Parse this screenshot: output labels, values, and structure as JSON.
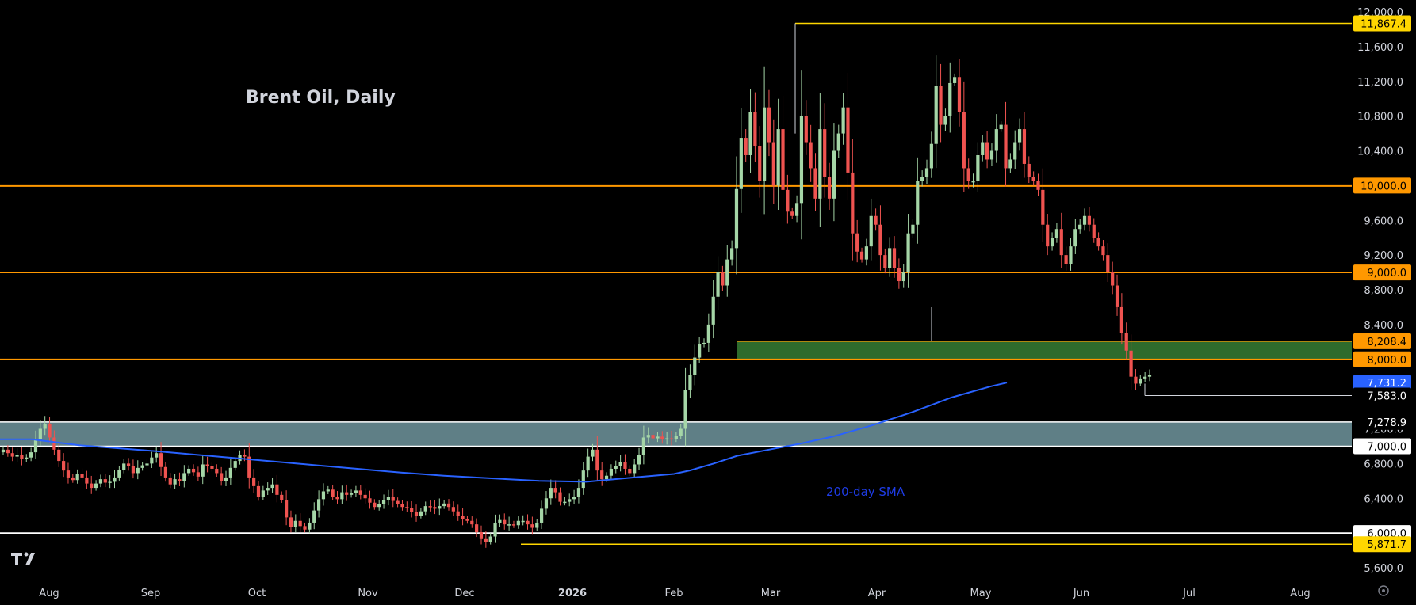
{
  "chart_data": {
    "type": "candlestick",
    "title": "Brent Oil, Daily",
    "ylim": [
      5600,
      12000
    ],
    "y_ticks": [
      5600,
      6000,
      6400,
      6800,
      7200,
      7600,
      8000,
      8400,
      8800,
      9200,
      9600,
      10000,
      10400,
      10800,
      11200,
      11600,
      12000
    ],
    "y_tick_labels": [
      "5,600.0",
      "6,000.0",
      "6,400.0",
      "6,800.0",
      "7,200.0",
      "7,600.0",
      "8,000.0",
      "8,400.0",
      "8,800.0",
      "9,200.0",
      "9,600.0",
      "10,000.0",
      "10,400.0",
      "10,800.0",
      "11,200.0",
      "11,600.0",
      "12,000.0"
    ],
    "x_labels": [
      "Aug",
      "Sep",
      "Oct",
      "Nov",
      "Dec",
      "2026",
      "Feb",
      "Mar",
      "Apr",
      "May",
      "Jun",
      "Jul",
      "Aug"
    ],
    "sma_label": "200-day SMA",
    "price_tags": [
      {
        "value": 11867.4,
        "label": "11,867.4",
        "bg": "#ffd600",
        "fg": "#000000"
      },
      {
        "value": 10000.0,
        "label": "10,000.0",
        "bg": "#ff9800",
        "fg": "#000000"
      },
      {
        "value": 9000.0,
        "label": "9,000.0",
        "bg": "#ff9800",
        "fg": "#000000"
      },
      {
        "value": 8208.4,
        "label": "8,208.4",
        "bg": "#ff9800",
        "fg": "#000000"
      },
      {
        "value": 8000.0,
        "label": "8,000.0",
        "bg": "#ff9800",
        "fg": "#000000"
      },
      {
        "value": 7731.2,
        "label": "7,731.2",
        "bg": "#2962ff",
        "fg": "#ffffff"
      },
      {
        "value": 7583.0,
        "label": "7,583.0",
        "bg": "#000000",
        "fg": "#ffffff"
      },
      {
        "value": 7278.9,
        "label": "7,278.9",
        "bg": "#000000",
        "fg": "#ffffff"
      },
      {
        "value": 7000.0,
        "label": "7,000.0",
        "bg": "#ffffff",
        "fg": "#000000"
      },
      {
        "value": 6000.0,
        "label": "6,000.0",
        "bg": "#ffffff",
        "fg": "#000000"
      },
      {
        "value": 5871.7,
        "label": "5,871.7",
        "bg": "#ffd600",
        "fg": "#000000"
      }
    ],
    "levels": [
      {
        "value": 10000,
        "color": "#ff9800"
      },
      {
        "value": 9000,
        "color": "#ff9800"
      },
      {
        "value": 8000,
        "color": "#ff9800"
      },
      {
        "value": 6000,
        "color": "#ffffff"
      }
    ],
    "zones": [
      {
        "from": 8000,
        "to": 8208.4,
        "fill": "#2e6b2c",
        "border": "#ff9800"
      },
      {
        "from": 7000,
        "to": 7278.9,
        "fill": "#5f7f86",
        "border": "#ffffff"
      }
    ],
    "colors": {
      "up": "#a5d6a7",
      "down": "#ef5350",
      "sma": "#2962ff",
      "background": "#000000"
    },
    "closes": [
      6960,
      6920,
      6880,
      6900,
      6850,
      6870,
      6930,
      7080,
      7200,
      7260,
      7100,
      6960,
      6830,
      6720,
      6640,
      6610,
      6680,
      6640,
      6570,
      6520,
      6570,
      6620,
      6580,
      6590,
      6640,
      6730,
      6800,
      6770,
      6690,
      6750,
      6780,
      6800,
      6870,
      6920,
      6760,
      6640,
      6560,
      6620,
      6600,
      6690,
      6740,
      6700,
      6650,
      6790,
      6770,
      6740,
      6690,
      6600,
      6640,
      6750,
      6830,
      6900,
      6880,
      6640,
      6540,
      6420,
      6490,
      6520,
      6560,
      6440,
      6380,
      6180,
      6070,
      6140,
      6080,
      6040,
      6120,
      6260,
      6390,
      6480,
      6500,
      6420,
      6390,
      6470,
      6440,
      6460,
      6490,
      6440,
      6400,
      6350,
      6300,
      6330,
      6380,
      6420,
      6370,
      6330,
      6300,
      6290,
      6240,
      6200,
      6250,
      6310,
      6300,
      6280,
      6310,
      6340,
      6300,
      6250,
      6200,
      6160,
      6140,
      6100,
      6010,
      5930,
      5900,
      5960,
      6120,
      6150,
      6100,
      6100,
      6090,
      6140,
      6140,
      6100,
      6060,
      6120,
      6280,
      6400,
      6520,
      6470,
      6360,
      6360,
      6390,
      6420,
      6520,
      6720,
      6880,
      6960,
      6720,
      6620,
      6660,
      6740,
      6770,
      6820,
      6740,
      6690,
      6790,
      6900,
      7100,
      7130,
      7090,
      7110,
      7080,
      7090,
      7080,
      7120,
      7200,
      7650,
      7820,
      8020,
      8180,
      8190,
      8400,
      8720,
      9000,
      8850,
      9150,
      9280,
      9960,
      10550,
      10350,
      10850,
      10450,
      10050,
      10900,
      10500,
      10000,
      10650,
      9950,
      9700,
      9650,
      9800,
      10800,
      10500,
      10200,
      9850,
      10650,
      10100,
      9850,
      10400,
      10600,
      10900,
      10150,
      9450,
      9240,
      9150,
      9300,
      9650,
      9550,
      9200,
      9050,
      9280,
      9050,
      8900,
      9000,
      9450,
      9550,
      10050,
      10100,
      10200,
      10480,
      11150,
      10700,
      10800,
      11180,
      11250,
      10850,
      10200,
      10050,
      10050,
      10350,
      10500,
      10300,
      10400,
      10650,
      10700,
      10200,
      10300,
      10500,
      10650,
      10250,
      10100,
      10050,
      9950,
      9550,
      9300,
      9400,
      9500,
      9200,
      9100,
      9300,
      9500,
      9550,
      9650,
      9550,
      9400,
      9300,
      9200,
      9000,
      8850,
      8600,
      8300,
      8100,
      7800,
      7720,
      7780,
      7800,
      7820
    ],
    "sma": [
      [
        0,
        7080
      ],
      [
        40,
        7080
      ],
      [
        100,
        7010
      ],
      [
        200,
        6940
      ],
      [
        300,
        6860
      ],
      [
        400,
        6780
      ],
      [
        500,
        6700
      ],
      [
        560,
        6660
      ],
      [
        620,
        6630
      ],
      [
        680,
        6600
      ],
      [
        740,
        6590
      ],
      [
        800,
        6640
      ],
      [
        850,
        6680
      ],
      [
        870,
        6720
      ],
      [
        900,
        6800
      ],
      [
        930,
        6890
      ],
      [
        970,
        6960
      ],
      [
        1010,
        7030
      ],
      [
        1050,
        7110
      ],
      [
        1100,
        7240
      ],
      [
        1150,
        7390
      ],
      [
        1200,
        7560
      ],
      [
        1250,
        7690
      ],
      [
        1270,
        7731.2
      ]
    ]
  }
}
